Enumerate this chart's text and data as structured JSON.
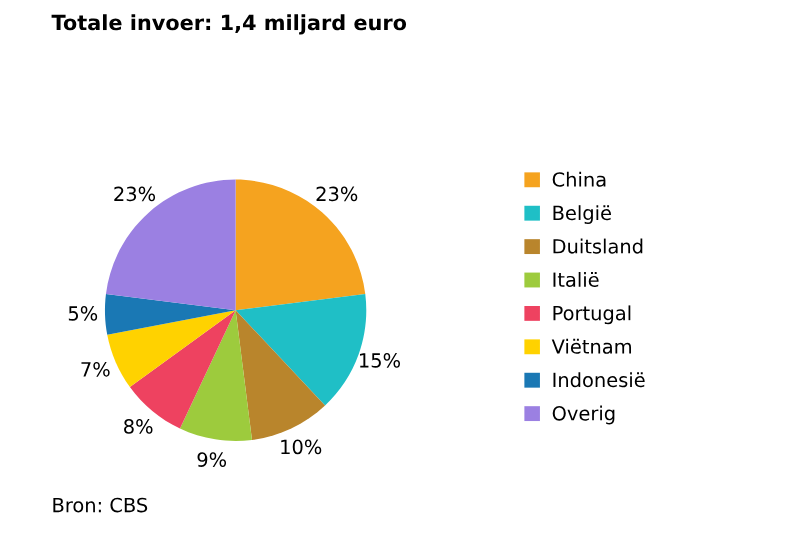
{
  "chart_data": {
    "type": "pie",
    "title": "Totale invoer: 1,4 miljard euro",
    "categories": [
      "China",
      "België",
      "Duitsland",
      "Italië",
      "Portugal",
      "Viëtnam",
      "Indonesië",
      "Overig"
    ],
    "values": [
      23,
      15,
      10,
      9,
      8,
      7,
      5,
      23
    ],
    "value_labels": [
      "23%",
      "15%",
      "10%",
      "9%",
      "8%",
      "7%",
      "5%",
      "23%"
    ],
    "colors": [
      "#f5a31f",
      "#1fbfc6",
      "#b9852c",
      "#9dcb3d",
      "#ee4260",
      "#ffd200",
      "#1a78b4",
      "#9b80e2"
    ],
    "legend": "right",
    "annotations": [
      "Bron: CBS"
    ]
  }
}
